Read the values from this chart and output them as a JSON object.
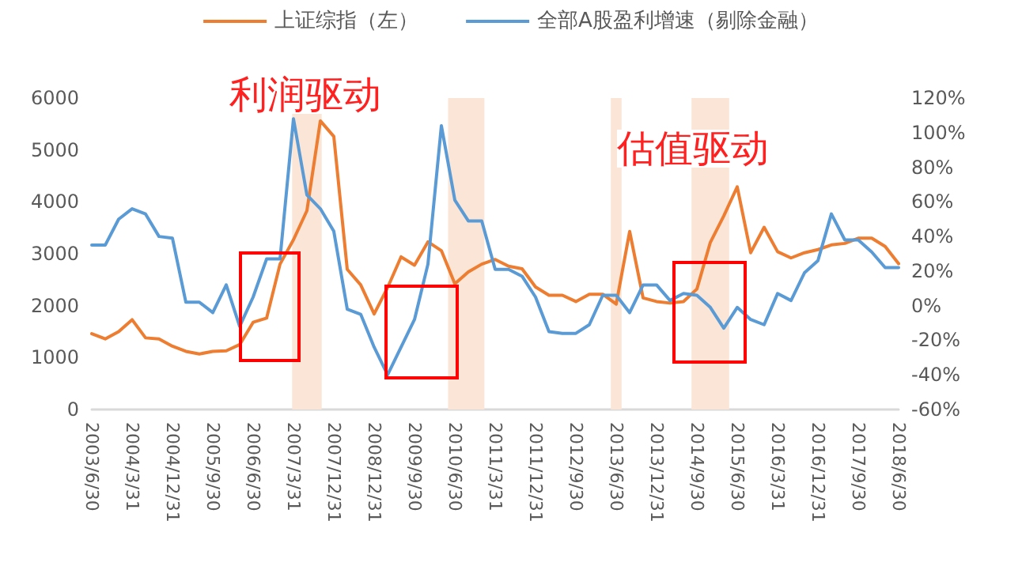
{
  "chart_data": {
    "type": "line",
    "categories": [
      "2003/6/30",
      null,
      null,
      "2004/3/31",
      null,
      null,
      "2004/12/31",
      null,
      null,
      "2005/9/30",
      null,
      null,
      "2006/6/30",
      null,
      null,
      "2007/3/31",
      null,
      null,
      "2007/12/31",
      null,
      null,
      "2008/12/31",
      null,
      null,
      "2009/9/30",
      null,
      null,
      "2010/6/30",
      null,
      null,
      "2011/3/31",
      null,
      null,
      "2011/12/31",
      null,
      null,
      "2012/9/30",
      null,
      null,
      "2013/6/30",
      null,
      null,
      "2013/12/31",
      null,
      null,
      "2014/9/30",
      null,
      null,
      "2015/6/30",
      null,
      null,
      "2016/3/31",
      null,
      null,
      "2016/12/31",
      null,
      null,
      "2017/9/30",
      null,
      null,
      "2018/6/30"
    ],
    "series": [
      {
        "name": "上证综指（左）",
        "color": "#ed7d31",
        "values": [
          1460,
          1360,
          1500,
          1730,
          1380,
          1360,
          1220,
          1120,
          1070,
          1120,
          1130,
          1250,
          1680,
          1760,
          2800,
          3270,
          3830,
          5560,
          5260,
          2700,
          2400,
          1840,
          2350,
          2940,
          2780,
          3230,
          3060,
          2420,
          2650,
          2800,
          2890,
          2760,
          2710,
          2360,
          2200,
          2200,
          2080,
          2220,
          2220,
          2030,
          3430,
          2150,
          2080,
          2050,
          2080,
          2320,
          3220,
          3730,
          4290,
          3020,
          3510,
          3040,
          2920,
          3020,
          3080,
          3170,
          3200,
          3300,
          3300,
          3140,
          2810
        ]
      },
      {
        "name": "全部A股盈利增速（剔除金融）",
        "color": "#5b9bd5",
        "axis": "y2",
        "values": [
          35,
          35,
          50,
          56,
          53,
          40,
          39,
          2,
          2,
          -4,
          12,
          -12,
          5,
          27,
          27,
          108,
          64,
          56,
          43,
          -2,
          -5,
          -24,
          -40,
          -24,
          -8,
          24,
          104,
          61,
          49,
          49,
          21,
          21,
          17,
          5,
          -15,
          -16,
          -16,
          -11,
          6,
          6,
          -4,
          12,
          12,
          3,
          7,
          6,
          -1,
          -13,
          -1,
          -8,
          -11,
          7,
          3,
          19,
          26,
          53,
          38,
          38,
          31,
          22,
          22
        ]
      }
    ],
    "ylim": [
      0,
      6000
    ],
    "yticks": [
      0,
      1000,
      2000,
      3000,
      4000,
      5000,
      6000
    ],
    "y2lim": [
      -60,
      120
    ],
    "y2ticks": [
      {
        "value": -60,
        "label": "-60%"
      },
      {
        "value": -40,
        "label": "-40%"
      },
      {
        "value": -20,
        "label": "-20%"
      },
      {
        "value": 0,
        "label": "0%"
      },
      {
        "value": 20,
        "label": "20%"
      },
      {
        "value": 40,
        "label": "40%"
      },
      {
        "value": 60,
        "label": "60%"
      },
      {
        "value": 80,
        "label": "80%"
      },
      {
        "value": 100,
        "label": "100%"
      },
      {
        "value": 120,
        "label": "120%"
      }
    ],
    "annotations": [
      "利润驱动",
      "估值驱动"
    ],
    "legend": "top",
    "grid": false,
    "marker": "none",
    "line_style": "solid"
  }
}
